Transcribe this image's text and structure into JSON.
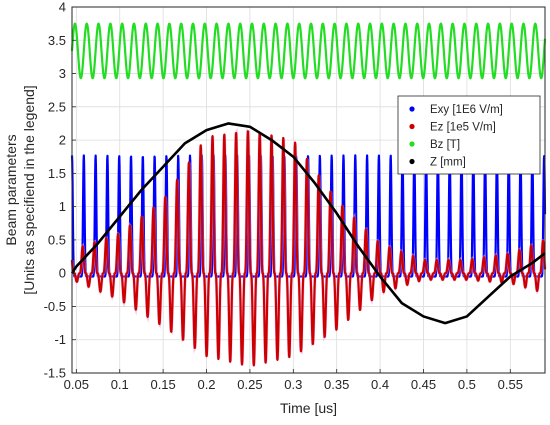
{
  "chart_data": {
    "type": "line",
    "xlabel": "Time [us]",
    "ylabel": [
      "Beam parameters",
      "[Units as specifiend in the legend]"
    ],
    "xlim": [
      0.045,
      0.59
    ],
    "ylim": [
      -1.5,
      4
    ],
    "xticks": [
      0.05,
      0.1,
      0.15,
      0.2,
      0.25,
      0.3,
      0.35,
      0.4,
      0.45,
      0.5,
      0.55
    ],
    "xtick_labels": [
      "0.05",
      "0.1",
      "0.15",
      "0.2",
      "0.25",
      "0.3",
      "0.35",
      "0.4",
      "0.45",
      "0.5",
      "0.55"
    ],
    "yticks": [
      -1.5,
      -1,
      -0.5,
      0,
      0.5,
      1,
      1.5,
      2,
      2.5,
      3,
      3.5,
      4
    ],
    "ytick_labels": [
      "-1.5",
      "-1",
      "-0.5",
      "0",
      "0.5",
      "1",
      "1.5",
      "2",
      "2.5",
      "3",
      "3.5",
      "4"
    ],
    "grid": true,
    "legend_position": "right",
    "series": [
      {
        "name": "Exy [1E6 V/m]",
        "color": "#0000ff",
        "kind": "oscillation",
        "shape": "spike",
        "period": 0.0136,
        "x_start": 0.045,
        "x_end": 0.59,
        "min_value": -0.05,
        "max_value": 1.77
      },
      {
        "name": "Ez [1e5 V/m]",
        "color": "#cc0000",
        "kind": "oscillation",
        "shape": "bipolar",
        "period": 0.0136,
        "x_start": 0.045,
        "x_end": 0.59,
        "envelope_x": [
          0.045,
          0.1,
          0.15,
          0.2,
          0.25,
          0.3,
          0.35,
          0.4,
          0.45,
          0.5,
          0.55,
          0.59
        ],
        "envelope_max": [
          0.35,
          0.6,
          1.1,
          2.05,
          2.15,
          2.0,
          1.1,
          0.45,
          0.2,
          0.2,
          0.3,
          0.5
        ],
        "envelope_min": [
          -0.1,
          -0.4,
          -0.8,
          -1.25,
          -1.4,
          -1.25,
          -0.85,
          -0.3,
          -0.1,
          -0.1,
          -0.15,
          -0.3
        ]
      },
      {
        "name": "Bz [T]",
        "color": "#22dd22",
        "kind": "oscillation",
        "shape": "sine",
        "period": 0.0136,
        "x_start": 0.045,
        "x_end": 0.59,
        "min_value": 2.93,
        "max_value": 3.75
      },
      {
        "name": "Z [mm]",
        "color": "#000000",
        "kind": "curve",
        "x": [
          0.045,
          0.05,
          0.075,
          0.1,
          0.125,
          0.15,
          0.175,
          0.2,
          0.225,
          0.25,
          0.275,
          0.3,
          0.325,
          0.35,
          0.375,
          0.4,
          0.425,
          0.45,
          0.475,
          0.5,
          0.525,
          0.55,
          0.575,
          0.59
        ],
        "y": [
          0.0,
          0.1,
          0.45,
          0.85,
          1.25,
          1.6,
          1.95,
          2.15,
          2.25,
          2.2,
          2.0,
          1.75,
          1.35,
          0.9,
          0.4,
          -0.05,
          -0.45,
          -0.65,
          -0.75,
          -0.65,
          -0.35,
          -0.05,
          0.15,
          0.3
        ]
      }
    ]
  }
}
